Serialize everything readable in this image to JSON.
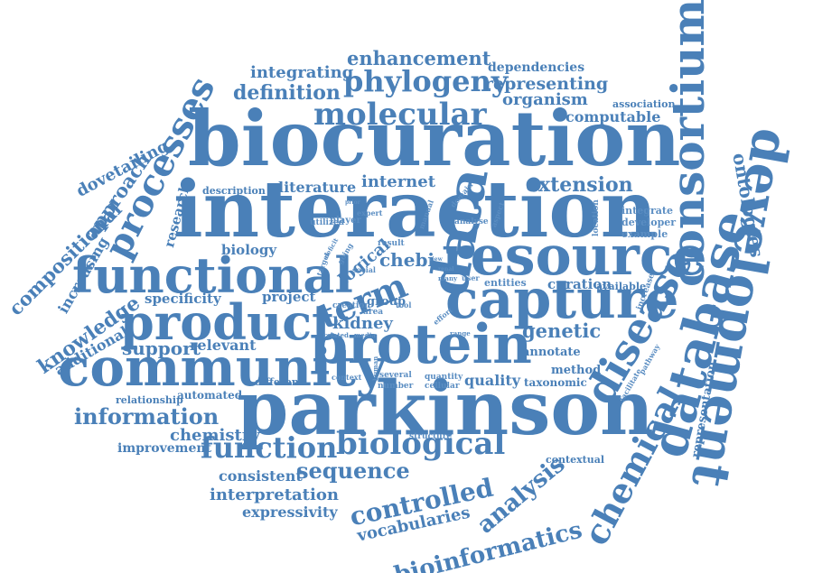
{
  "accent_color": "#4a80b8",
  "words": {
    "biocuration": "biocuration",
    "interaction": "interaction",
    "parkinson": "parkinson",
    "protein": "protein",
    "resource": "resource",
    "community": "community",
    "product": "product",
    "functional": "functional",
    "capture": "capture",
    "data": "data",
    "term": "term",
    "molecular": "molecular",
    "phylogeny": "phylogeny",
    "enhancement": "enhancement",
    "integrating": "integrating",
    "definition": "definition",
    "dependencies": "dependencies",
    "representing": "representing",
    "organism": "organism",
    "association": "association",
    "computable": "computable",
    "consortium": "consortium",
    "processes": "processes",
    "dovetailing": "dovetailing",
    "approach": "approach",
    "compositional": "compositional",
    "increasing": "increasing",
    "research": "research",
    "description": "description",
    "literature": "literature",
    "internet": "internet",
    "extension": "extension",
    "ontologies": "ontologies",
    "development": "development",
    "database": "database",
    "disease": "disease",
    "chemical": "chemical",
    "biology": "biology",
    "chebi": "chebi",
    "logical": "logical",
    "knowledge": "knowledge",
    "specificity": "specificity",
    "project": "project",
    "group": "group",
    "curation": "curation",
    "available": "available",
    "kidney": "kidney",
    "genetic": "genetic",
    "annotate": "annotate",
    "additional": "additional",
    "support": "support",
    "relevant": "relevant",
    "method": "method",
    "taxonomic": "taxonomic",
    "quality": "quality",
    "relationship": "relationship",
    "automated": "automated",
    "different": "different",
    "information": "information",
    "chemistry": "chemistry",
    "improvement": "improvement",
    "function": "function",
    "biological": "biological",
    "consistent": "consistent",
    "sequence": "sequence",
    "interpretation": "interpretation",
    "controlled": "controlled",
    "expressivity": "expressivity",
    "vocabularies": "vocabularies",
    "analysis": "analysis",
    "bioinformatics": "bioinformatics",
    "contextual": "contextual",
    "representation": "representation",
    "integrate": "integrate",
    "developer": "developer",
    "example": "example",
    "location": "location",
    "utilized": "utilized",
    "player": "player",
    "expert": "expert",
    "domain": "domain",
    "manual": "manual",
    "analyse": "analyse",
    "aspect": "aspect",
    "result": "result",
    "going": "going",
    "deficit": "deficit",
    "target": "target",
    "social": "social",
    "creation": "creation",
    "area": "area",
    "many": "many",
    "user": "user",
    "entities": "entities",
    "tool": "tool",
    "effort": "effort",
    "range": "range",
    "related": "related",
    "media": "media",
    "context": "context",
    "human": "human",
    "several": "several",
    "number": "number",
    "quantity": "quantity",
    "cellular": "cellular",
    "structure": "structure",
    "increase": "increase",
    "pathway": "pathway",
    "facilitate": "facilitate",
    "view": "view",
    "renal": "renal",
    "prior": "prior"
  }
}
